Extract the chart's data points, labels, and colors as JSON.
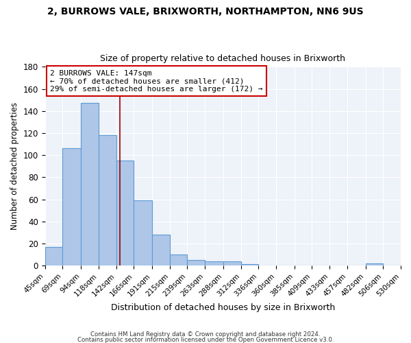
{
  "title": "2, BURROWS VALE, BRIXWORTH, NORTHAMPTON, NN6 9US",
  "subtitle": "Size of property relative to detached houses in Brixworth",
  "xlabel": "Distribution of detached houses by size in Brixworth",
  "ylabel": "Number of detached properties",
  "bin_labels": [
    "45sqm",
    "69sqm",
    "94sqm",
    "118sqm",
    "142sqm",
    "166sqm",
    "191sqm",
    "215sqm",
    "239sqm",
    "263sqm",
    "288sqm",
    "312sqm",
    "336sqm",
    "360sqm",
    "385sqm",
    "409sqm",
    "433sqm",
    "457sqm",
    "482sqm",
    "506sqm",
    "530sqm"
  ],
  "bin_edges": [
    45,
    69,
    94,
    118,
    142,
    166,
    191,
    215,
    239,
    263,
    288,
    312,
    336,
    360,
    385,
    409,
    433,
    457,
    482,
    506,
    530
  ],
  "bar_heights": [
    17,
    106,
    147,
    118,
    95,
    59,
    28,
    10,
    5,
    4,
    4,
    1,
    0,
    0,
    0,
    0,
    0,
    0,
    2,
    0
  ],
  "bar_color": "#aec6e8",
  "bar_edge_color": "#5b9bd5",
  "property_size": 147,
  "red_line_color": "#9b0000",
  "annotation_text": "2 BURROWS VALE: 147sqm\n← 70% of detached houses are smaller (412)\n29% of semi-detached houses are larger (172) →",
  "annotation_box_edge_color": "#cc0000",
  "ylim": [
    0,
    180
  ],
  "yticks": [
    0,
    20,
    40,
    60,
    80,
    100,
    120,
    140,
    160,
    180
  ],
  "background_color": "#eef2f9",
  "footer_line1": "Contains HM Land Registry data © Crown copyright and database right 2024.",
  "footer_line2": "Contains public sector information licensed under the Open Government Licence v3.0."
}
